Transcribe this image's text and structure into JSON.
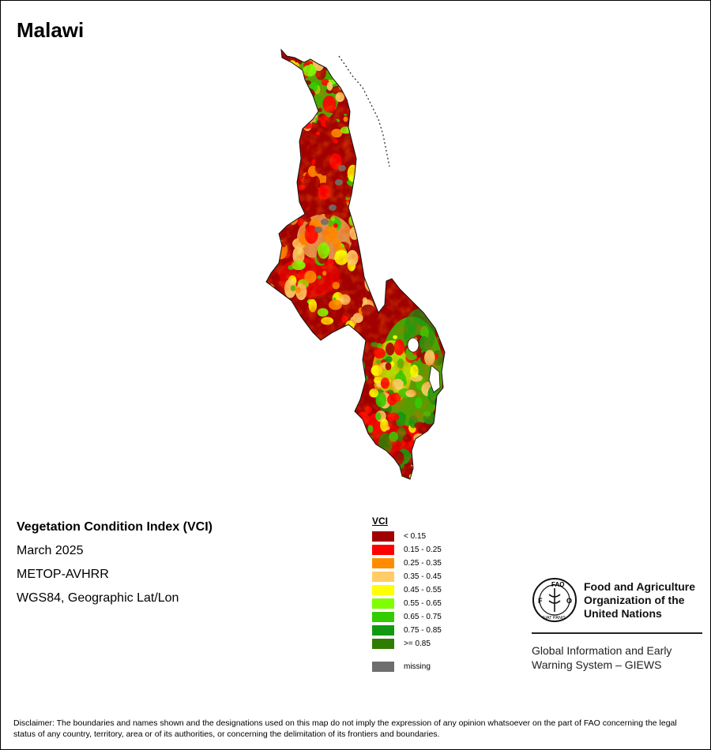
{
  "title": "Malawi",
  "info": {
    "index_name": "Vegetation Condition Index (VCI)",
    "date": "March 2025",
    "sensor": "METOP-AVHRR",
    "projection": "WGS84, Geographic Lat/Lon"
  },
  "legend": {
    "title": "VCI",
    "classes": [
      {
        "label": "< 0.15",
        "color": "#a00000"
      },
      {
        "label": "0.15 - 0.25",
        "color": "#ff0000"
      },
      {
        "label": "0.25 - 0.35",
        "color": "#ff8c00"
      },
      {
        "label": "0.35 - 0.45",
        "color": "#ffcc66"
      },
      {
        "label": "0.45 - 0.55",
        "color": "#ffff00"
      },
      {
        "label": "0.55 - 0.65",
        "color": "#7fff00"
      },
      {
        "label": "0.65 - 0.75",
        "color": "#33cc00"
      },
      {
        "label": "0.75 - 0.85",
        "color": "#119911"
      },
      {
        "label": ">= 0.85",
        "color": "#2e7d00"
      }
    ],
    "missing": {
      "label": "missing",
      "color": "#6e6e6e"
    }
  },
  "organization": {
    "logo_text": "FAO",
    "logo_ring_text": "FIAT PANIS",
    "name_line1": "Food and Agriculture",
    "name_line2": "Organization of the",
    "name_line3": "United Nations",
    "system_line1": "Global Information and Early",
    "system_line2": "Warning System – GIEWS"
  },
  "disclaimer": "Disclaimer: The boundaries and names shown and the designations used on this map do not imply the expression of any opinion whatsoever on the part of FAO concerning the legal status of any country, territory, area or of its authorities, or concerning the delimitation of its frontiers and boundaries."
}
